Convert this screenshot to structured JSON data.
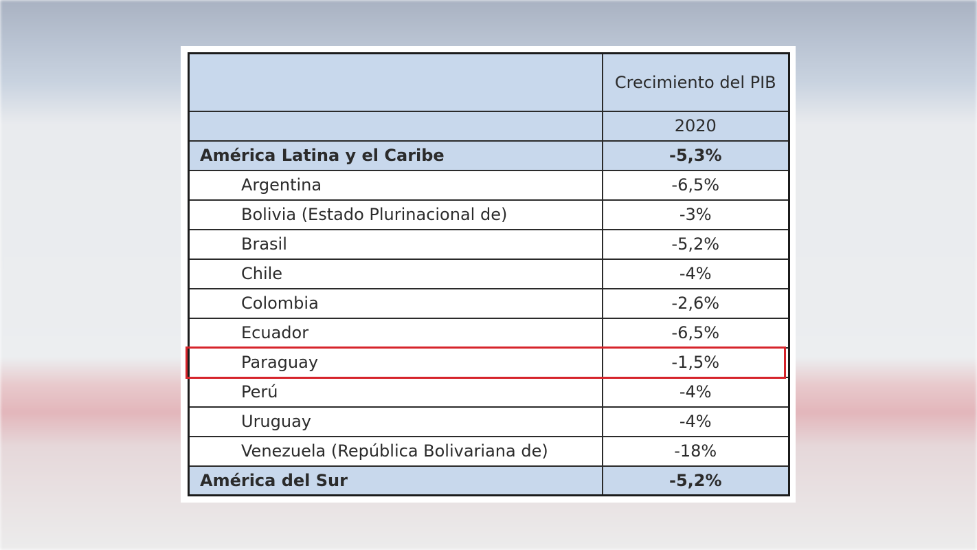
{
  "table": {
    "header": {
      "metric_label": "Crecimiento del PIB",
      "year_label": "2020"
    },
    "rows": [
      {
        "kind": "region",
        "name": "América Latina y el Caribe",
        "value": "-5,3%"
      },
      {
        "kind": "country",
        "name": "Argentina",
        "value": "-6,5%"
      },
      {
        "kind": "country",
        "name": "Bolivia (Estado Plurinacional de)",
        "value": "-3%"
      },
      {
        "kind": "country",
        "name": "Brasil",
        "value": "-5,2%"
      },
      {
        "kind": "country",
        "name": "Chile",
        "value": "-4%"
      },
      {
        "kind": "country",
        "name": "Colombia",
        "value": "-2,6%"
      },
      {
        "kind": "country",
        "name": "Ecuador",
        "value": "-6,5%"
      },
      {
        "kind": "country",
        "name": "Paraguay",
        "value": "-1,5%",
        "highlighted": true
      },
      {
        "kind": "country",
        "name": "Perú",
        "value": "-4%"
      },
      {
        "kind": "country",
        "name": "Uruguay",
        "value": "-4%"
      },
      {
        "kind": "country",
        "name": "Venezuela (República Bolivariana de)",
        "value": "-18%"
      },
      {
        "kind": "region",
        "name": "América del Sur",
        "value": "-5,2%"
      }
    ]
  },
  "colors": {
    "header_fill": "#c8d8ec",
    "highlight_border": "#d6242b",
    "border": "#1b1b1b"
  }
}
